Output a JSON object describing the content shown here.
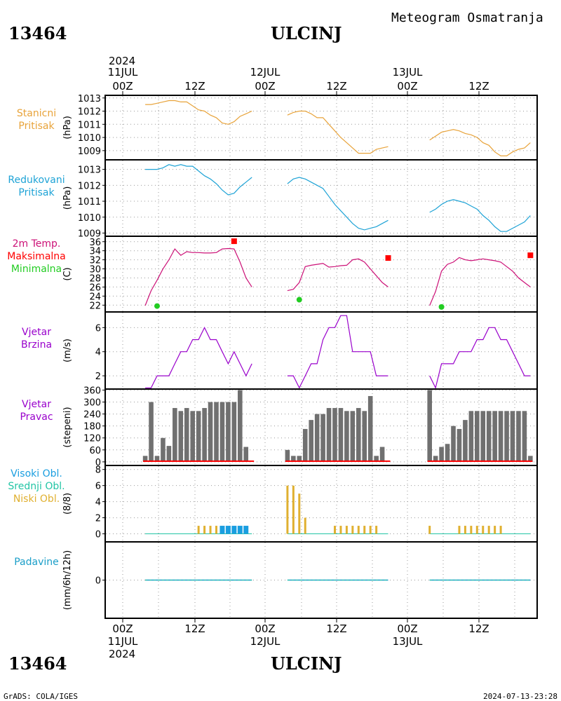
{
  "header": {
    "station_id": "13464",
    "station_name": "ULCINJ",
    "product_title": "Meteogram Osmatranja",
    "year_top": "2024",
    "year_bottom": "2024"
  },
  "footer": {
    "credit": "GrADS: COLA/IGES",
    "timestamp": "2024-07-13-23:28"
  },
  "time_axis": {
    "top_dates": [
      "11JUL",
      "12JUL",
      "13JUL"
    ],
    "bottom_dates": [
      "11JUL",
      "12JUL",
      "13JUL"
    ],
    "hour_labels": [
      "00Z",
      "12Z",
      "00Z",
      "12Z",
      "00Z",
      "12Z"
    ],
    "hour_positions": [
      0,
      12,
      24,
      36,
      48,
      60
    ],
    "x_range_hours": [
      -1.5,
      35.2
    ]
  },
  "colors": {
    "pressure_station": "#e8a33a",
    "pressure_reduced": "#1ea3d6",
    "tmax_square": "#ff0000",
    "tmin_dot": "#22cc22",
    "temp_line": "#cc1177",
    "wind": "#9900cc",
    "bars": "#707070",
    "high_clouds": "#1a9ee0",
    "mid_clouds": "#22c5a5",
    "low_clouds": "#e0b030",
    "precip": "#1a9ec8",
    "grid": "#999999"
  },
  "chart_data": [
    {
      "name": "station_pressure",
      "type": "line",
      "label_lines": [
        "Stanicni",
        "Pritisak"
      ],
      "label_colors": [
        "pressure_station",
        "pressure_station"
      ],
      "ylabel": "(hPa)",
      "yticks": [
        1009,
        1010,
        1011,
        1012,
        1013
      ],
      "ylim": [
        1008.3,
        1013.2
      ],
      "grid": true,
      "series": [
        {
          "color": "pressure_station",
          "segments": [
            {
              "x": [
                2,
                3,
                4,
                5,
                6,
                7,
                8,
                9,
                10,
                11,
                12,
                13,
                14,
                15,
                16,
                17,
                18,
                19,
                20
              ],
              "y": [
                1012.5,
                1012.5,
                1012.6,
                1012.7,
                1012.8,
                1012.8,
                1012.7,
                1012.7,
                1012.4,
                1012.1,
                1012.0,
                1011.7,
                1011.5,
                1011.1,
                1011.0,
                1011.2,
                1011.6,
                1011.8,
                1012.0
              ]
            },
            {
              "x": [
                26,
                27,
                28,
                29,
                30,
                31,
                32,
                33,
                34,
                35,
                36,
                37,
                38,
                39,
                40,
                41,
                42,
                43
              ],
              "y": [
                1011.7,
                1011.9,
                1012.0,
                1012.0,
                1011.8,
                1011.5,
                1011.5,
                1011.0,
                1010.5,
                1010.0,
                1009.6,
                1009.2,
                1008.8,
                1008.8,
                1008.8,
                1009.1,
                1009.2,
                1009.3
              ]
            },
            {
              "x": [
                50,
                51,
                52,
                53,
                54,
                55,
                56,
                57,
                58,
                59,
                60,
                61,
                62,
                63,
                64,
                65,
                66,
                67
              ],
              "y": [
                1009.8,
                1010.1,
                1010.4,
                1010.5,
                1010.6,
                1010.5,
                1010.3,
                1010.2,
                1010.0,
                1009.6,
                1009.4,
                1008.9,
                1008.6,
                1008.6,
                1008.9,
                1009.1,
                1009.2,
                1009.6
              ]
            }
          ]
        }
      ]
    },
    {
      "name": "reduced_pressure",
      "type": "line",
      "label_lines": [
        "Redukovani",
        "Pritisak"
      ],
      "label_colors": [
        "pressure_reduced",
        "pressure_reduced"
      ],
      "ylabel": "(hPa)",
      "yticks": [
        1009,
        1010,
        1011,
        1012,
        1013
      ],
      "ylim": [
        1008.8,
        1013.6
      ],
      "grid": true,
      "series": [
        {
          "color": "pressure_reduced",
          "segments": [
            {
              "x": [
                2,
                3,
                4,
                5,
                6,
                7,
                8,
                9,
                10,
                11,
                12,
                13,
                14,
                15,
                16,
                17,
                18,
                19,
                20
              ],
              "y": [
                1013.0,
                1013.0,
                1013.0,
                1013.1,
                1013.3,
                1013.2,
                1013.3,
                1013.2,
                1013.2,
                1012.9,
                1012.6,
                1012.4,
                1012.1,
                1011.7,
                1011.4,
                1011.5,
                1011.9,
                1012.2,
                1012.5
              ]
            },
            {
              "x": [
                26,
                27,
                28,
                29,
                30,
                31,
                32,
                33,
                34,
                35,
                36,
                37,
                38,
                39,
                40,
                41,
                42,
                43
              ],
              "y": [
                1012.1,
                1012.4,
                1012.5,
                1012.4,
                1012.2,
                1012.0,
                1011.8,
                1011.3,
                1010.8,
                1010.4,
                1010.0,
                1009.6,
                1009.3,
                1009.2,
                1009.3,
                1009.4,
                1009.6,
                1009.8
              ]
            },
            {
              "x": [
                50,
                51,
                52,
                53,
                54,
                55,
                56,
                57,
                58,
                59,
                60,
                61,
                62,
                63,
                64,
                65,
                66,
                67
              ],
              "y": [
                1010.3,
                1010.5,
                1010.8,
                1011.0,
                1011.1,
                1011.0,
                1010.9,
                1010.7,
                1010.5,
                1010.1,
                1009.8,
                1009.4,
                1009.1,
                1009.1,
                1009.3,
                1009.5,
                1009.7,
                1010.1
              ]
            }
          ]
        }
      ]
    },
    {
      "name": "temperature",
      "type": "line",
      "label_lines": [
        "2m Temp.",
        "Maksimalna",
        "Minimalna"
      ],
      "label_colors": [
        "temp_line",
        "tmax_square",
        "tmin_dot"
      ],
      "ylabel": "(C)",
      "yticks": [
        22,
        24,
        26,
        28,
        30,
        32,
        34,
        36
      ],
      "ylim": [
        20.5,
        37.2
      ],
      "grid": true,
      "series": [
        {
          "color": "temp_line",
          "segments": [
            {
              "x": [
                2,
                3,
                4,
                5,
                6,
                7,
                8,
                9,
                10,
                11,
                12,
                13,
                14,
                15,
                16,
                17,
                18,
                19,
                20
              ],
              "y": [
                21.9,
                25.2,
                27.5,
                30.0,
                32.0,
                34.4,
                33.0,
                33.8,
                33.6,
                33.6,
                33.5,
                33.5,
                33.6,
                34.4,
                34.5,
                34.4,
                31.5,
                28.0,
                26.0
              ]
            },
            {
              "x": [
                26,
                27,
                28,
                29,
                30,
                31,
                32,
                33,
                34,
                35,
                36,
                37,
                38,
                39,
                40,
                41,
                42,
                43
              ],
              "y": [
                25.2,
                25.5,
                27.0,
                30.5,
                30.8,
                31.0,
                31.2,
                30.4,
                30.5,
                30.7,
                30.8,
                32.0,
                32.2,
                31.5,
                30.0,
                28.5,
                27.0,
                26.0
              ]
            },
            {
              "x": [
                50,
                51,
                52,
                53,
                54,
                55,
                56,
                57,
                58,
                59,
                60,
                61,
                62,
                63,
                64,
                65,
                66,
                67
              ],
              "y": [
                21.9,
                25.0,
                29.5,
                31.0,
                31.5,
                32.5,
                32.0,
                31.8,
                32.0,
                32.2,
                32.0,
                31.8,
                31.5,
                30.5,
                29.5,
                28.0,
                27.0,
                26.0
              ]
            }
          ]
        }
      ],
      "tmax_markers": {
        "x": [
          17,
          43,
          67
        ],
        "y": [
          36.1,
          32.4,
          33.0
        ]
      },
      "tmin_markers": {
        "x": [
          4,
          28,
          52
        ],
        "y": [
          21.8,
          23.2,
          21.6
        ]
      }
    },
    {
      "name": "wind_speed",
      "type": "line",
      "label_lines": [
        "Vjetar",
        "Brzina"
      ],
      "label_colors": [
        "wind",
        "wind"
      ],
      "ylabel": "(m/s)",
      "yticks": [
        2,
        4,
        6
      ],
      "ylim": [
        0.9,
        7.3
      ],
      "grid": true,
      "series": [
        {
          "color": "wind",
          "segments": [
            {
              "x": [
                2,
                3,
                4,
                5,
                6,
                7,
                8,
                9,
                10,
                11,
                12,
                13,
                14,
                15,
                16,
                17,
                18,
                19,
                20
              ],
              "y": [
                1,
                1,
                2,
                2,
                2,
                3,
                4,
                4,
                5,
                5,
                6,
                5,
                5,
                4,
                3,
                4,
                3,
                2,
                3
              ]
            },
            {
              "x": [
                26,
                27,
                28,
                29,
                30,
                31,
                32,
                33,
                34,
                35,
                36,
                37,
                38,
                39,
                40,
                41,
                42,
                43
              ],
              "y": [
                2,
                2,
                1,
                2,
                3,
                3,
                5,
                6,
                6,
                7,
                7,
                4,
                4,
                4,
                4,
                2,
                2,
                2
              ]
            },
            {
              "x": [
                50,
                51,
                52,
                53,
                54,
                55,
                56,
                57,
                58,
                59,
                60,
                61,
                62,
                63,
                64,
                65,
                66,
                67
              ],
              "y": [
                2,
                1,
                3,
                3,
                3,
                4,
                4,
                4,
                5,
                5,
                6,
                6,
                5,
                5,
                4,
                3,
                2,
                2
              ]
            }
          ]
        }
      ]
    },
    {
      "name": "wind_direction",
      "type": "bar",
      "label_lines": [
        "Vjetar",
        "Pravac"
      ],
      "label_colors": [
        "wind",
        "wind"
      ],
      "ylabel": "(stepeni)",
      "yticks": [
        0,
        60,
        120,
        180,
        240,
        300,
        360
      ],
      "ylim": [
        -18,
        365
      ],
      "grid": true,
      "bar_color": "bars",
      "baseline_color": "tmax_square",
      "series": [
        {
          "name": "",
          "segments": [
            {
              "x": [
                2,
                3,
                4,
                5,
                6,
                7,
                8,
                9,
                10,
                11,
                12,
                13,
                14,
                15,
                16,
                17,
                18,
                19,
                20
              ],
              "y": [
                30,
                300,
                30,
                120,
                80,
                270,
                255,
                270,
                255,
                255,
                270,
                300,
                300,
                300,
                300,
                300,
                360,
                75,
                0
              ]
            },
            {
              "x": [
                26,
                27,
                28,
                29,
                30,
                31,
                32,
                33,
                34,
                35,
                36,
                37,
                38,
                39,
                40,
                41,
                42,
                43
              ],
              "y": [
                60,
                30,
                30,
                165,
                210,
                240,
                240,
                270,
                270,
                270,
                255,
                255,
                270,
                255,
                330,
                30,
                75,
                0
              ]
            },
            {
              "x": [
                50,
                51,
                52,
                53,
                54,
                55,
                56,
                57,
                58,
                59,
                60,
                61,
                62,
                63,
                64,
                65,
                66,
                67
              ],
              "y": [
                360,
                30,
                75,
                90,
                180,
                165,
                210,
                255,
                255,
                255,
                255,
                255,
                255,
                255,
                255,
                255,
                255,
                30
              ]
            }
          ]
        }
      ]
    },
    {
      "name": "clouds",
      "type": "bar",
      "label_lines": [
        "Visoki Obl.",
        "Srednji Obl.",
        "Niski Obl."
      ],
      "label_colors": [
        "high_clouds",
        "mid_clouds",
        "low_clouds"
      ],
      "ylabel": "(8/8)",
      "yticks": [
        0,
        2,
        4,
        6,
        8
      ],
      "ylim": [
        -1,
        8.5
      ],
      "grid": true,
      "series": [
        {
          "name": "Niski Obl.",
          "color": "low_clouds",
          "x": [
            11,
            12,
            13,
            14,
            15,
            26,
            27,
            28,
            29,
            34,
            35,
            36,
            37,
            38,
            39,
            40,
            41,
            50,
            55,
            56,
            57,
            58,
            59,
            60,
            61,
            62
          ],
          "y": [
            1,
            1,
            1,
            1,
            1,
            6,
            6,
            5,
            2,
            1,
            1,
            1,
            1,
            1,
            1,
            1,
            1,
            1,
            1,
            1,
            1,
            1,
            1,
            1,
            1,
            1
          ]
        },
        {
          "name": "Visoki Obl.",
          "color": "high_clouds",
          "x": [
            15,
            16,
            17,
            18,
            19
          ],
          "y": [
            1,
            1,
            1,
            1,
            1
          ]
        }
      ],
      "zero_line_segments": [
        [
          2,
          20
        ],
        [
          26,
          43
        ],
        [
          50,
          67
        ]
      ]
    },
    {
      "name": "precipitation",
      "type": "line",
      "label_lines": [
        "Padavine"
      ],
      "label_colors": [
        "precip"
      ],
      "ylabel": "(mm/6h/12h)",
      "yticks": [
        0
      ],
      "ylim": [
        -3.5,
        3.5
      ],
      "grid": true,
      "series": [
        {
          "color": "precip",
          "segments": [
            {
              "x": [
                2,
                20
              ],
              "y": [
                0,
                0
              ]
            },
            {
              "x": [
                26,
                43
              ],
              "y": [
                0,
                0
              ]
            },
            {
              "x": [
                50,
                67
              ],
              "y": [
                0,
                0
              ]
            }
          ]
        }
      ]
    }
  ]
}
